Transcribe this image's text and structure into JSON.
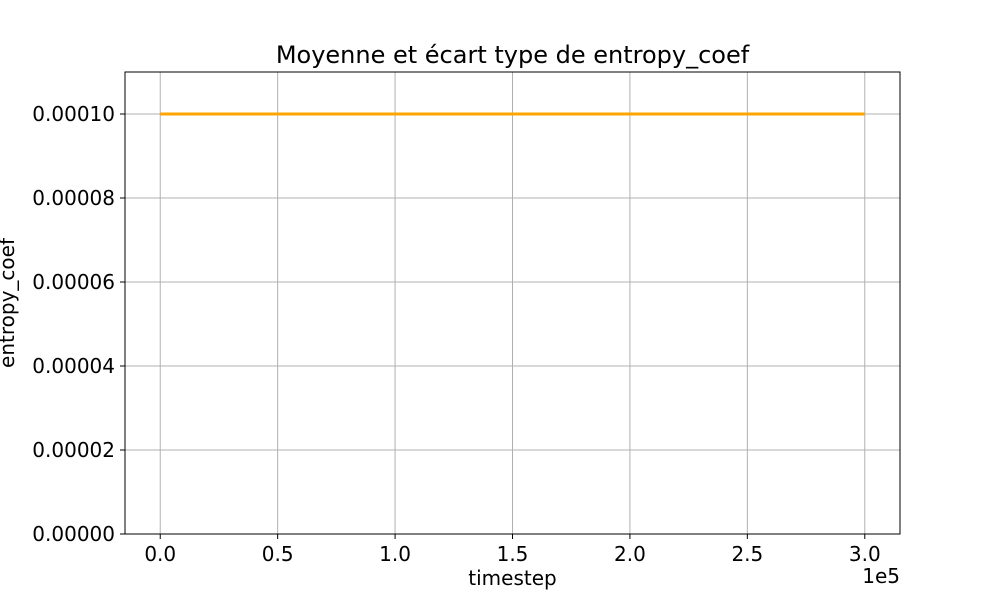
{
  "chart_data": {
    "type": "line",
    "title": "Moyenne et écart type de entropy_coef",
    "xlabel": "timestep",
    "ylabel": "entropy_coef",
    "x_offset_text": "1e5",
    "xlim": [
      -15000,
      315000
    ],
    "ylim": [
      0,
      0.00011
    ],
    "x_ticks": [
      0,
      50000,
      100000,
      150000,
      200000,
      250000,
      300000
    ],
    "x_tick_labels": [
      "0.0",
      "0.5",
      "1.0",
      "1.5",
      "2.0",
      "2.5",
      "3.0"
    ],
    "y_ticks": [
      0,
      2e-05,
      4e-05,
      6e-05,
      8e-05,
      0.0001
    ],
    "y_tick_labels": [
      "0.00000",
      "0.00002",
      "0.00004",
      "0.00006",
      "0.00008",
      "0.00010"
    ],
    "grid": true,
    "series": [
      {
        "color": "#FFA500",
        "x": [
          0,
          300000
        ],
        "y": [
          0.0001,
          0.0001
        ]
      }
    ]
  }
}
